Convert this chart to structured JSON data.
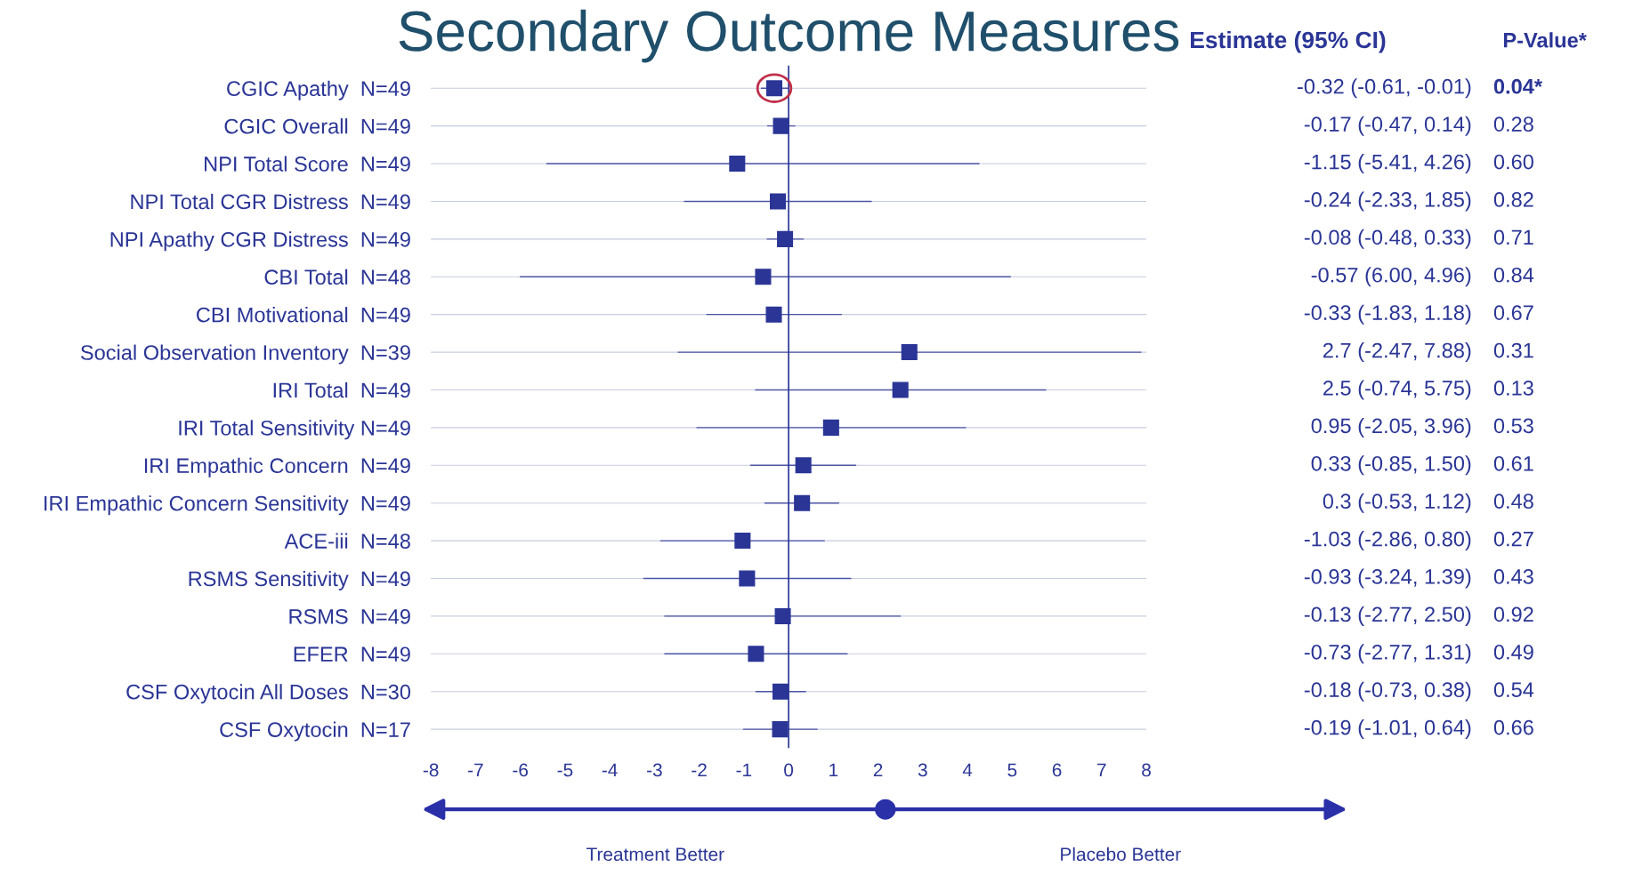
{
  "chart_data": {
    "type": "scatter",
    "orientation": "horizontal",
    "title": "Secondary Outcome Measures",
    "categories": [
      "CGIC Apathy  N=49",
      "CGIC Overall  N=49",
      "NPI Total Score  N=49",
      "NPI Total CGR Distress  N=49",
      "NPI Apathy CGR Distress  N=49",
      "CBI Total  N=48",
      "CBI Motivational  N=49",
      "Social Observation Inventory  N=39",
      "IRI Total  N=49",
      "IRI Total Sensitivity N=49",
      "IRI Empathic Concern  N=49",
      "IRI Empathic Concern Sensitivity  N=49",
      "ACE-iii  N=48",
      "RSMS Sensitivity  N=49",
      "RSMS  N=49",
      "EFER  N=49",
      "CSF Oxytocin All Doses  N=30",
      "CSF Oxytocin  N=17"
    ],
    "series": [
      {
        "color": "#2a3596",
        "values": [
          -0.32,
          -0.17,
          -1.15,
          -0.24,
          -0.08,
          -0.57,
          -0.33,
          2.7,
          2.5,
          0.95,
          0.33,
          0.3,
          -1.03,
          -0.93,
          -0.13,
          -0.73,
          -0.18,
          -0.19
        ],
        "errors": [
          [
            -0.61,
            -0.01
          ],
          [
            -0.47,
            0.14
          ],
          [
            -5.41,
            4.26
          ],
          [
            -2.33,
            1.85
          ],
          [
            -0.48,
            0.33
          ],
          [
            -6.0,
            4.96
          ],
          [
            -1.83,
            1.18
          ],
          [
            -2.47,
            7.88
          ],
          [
            -0.74,
            5.75
          ],
          [
            -2.05,
            3.96
          ],
          [
            -0.85,
            1.5
          ],
          [
            -0.53,
            1.12
          ],
          [
            -2.86,
            0.8
          ],
          [
            -3.24,
            1.39
          ],
          [
            -2.77,
            2.5
          ],
          [
            -2.77,
            1.31
          ],
          [
            -0.73,
            0.38
          ],
          [
            -1.01,
            0.64
          ]
        ],
        "value_labels": [
          "-0.32 (-0.61, -0.01)",
          "-0.17 (-0.47, 0.14)",
          "-1.15 (-5.41, 4.26)",
          "-0.24 (-2.33, 1.85)",
          "-0.08 (-0.48, 0.33)",
          "-0.57 (6.00, 4.96)",
          "-0.33 (-1.83, 1.18)",
          "2.7 (-2.47, 7.88)",
          "2.5 (-0.74, 5.75)",
          "0.95 (-2.05, 3.96)",
          "0.33 (-0.85, 1.50)",
          "0.3 (-0.53, 1.12)",
          "-1.03 (-2.86, 0.80)",
          "-0.93 (-3.24, 1.39)",
          "-0.13 (-2.77, 2.50)",
          "-0.73 (-2.77, 1.31)",
          "-0.18 (-0.73, 0.38)",
          "-0.19 (-1.01, 0.64)"
        ]
      }
    ],
    "marker": "square",
    "xlim": [
      -8,
      8
    ],
    "xticks": [
      -8,
      -7,
      -6,
      -5,
      -4,
      -3,
      -2,
      -1,
      0,
      1,
      2,
      3,
      4,
      5,
      6,
      7,
      8
    ],
    "grid": "y",
    "ref_lines": [
      {
        "axis": "x",
        "value": 0,
        "color": "#2a3596"
      }
    ],
    "annotations": [
      "Estimate (95% CI)",
      "P-Value*",
      "Treatment Better",
      "Placebo Better",
      "0.04*",
      "0.28",
      "0.60",
      "0.82",
      "0.71",
      "0.84",
      "0.67",
      "0.31",
      "0.13",
      "0.53",
      "0.61",
      "0.48",
      "0.27",
      "0.43",
      "0.92",
      "0.49",
      "0.54",
      "0.66"
    ]
  }
}
